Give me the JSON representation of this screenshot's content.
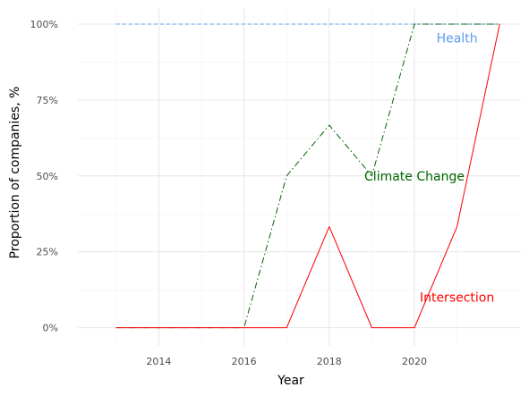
{
  "chart_data": {
    "type": "line",
    "xlabel": "Year",
    "ylabel": "Proportion of companies, %",
    "x": [
      2013,
      2014,
      2015,
      2016,
      2017,
      2018,
      2019,
      2020,
      2021,
      2022
    ],
    "xlim": [
      2012.1,
      2022.5
    ],
    "ylim": [
      -0.06,
      1.05
    ],
    "x_ticks": [
      2014,
      2016,
      2018,
      2020
    ],
    "x_tick_labels": [
      "2014",
      "2016",
      "2018",
      "2020"
    ],
    "y_ticks": [
      0,
      0.25,
      0.5,
      0.75,
      1.0
    ],
    "y_tick_labels": [
      "0%",
      "25%",
      "50%",
      "75%",
      "100%"
    ],
    "grid": true,
    "legend": "none (direct labels)",
    "series": [
      {
        "name": "Health",
        "color": "#5b9bf0",
        "dash": "dashed",
        "values": [
          1,
          1,
          1,
          1,
          1,
          1,
          1,
          1,
          1,
          1
        ],
        "label_x": 2021.0,
        "label_y": 0.955
      },
      {
        "name": "Climate Change",
        "color": "#006400",
        "dash": "dotdash",
        "values": [
          0,
          0,
          0,
          0,
          0.5,
          0.667,
          0.5,
          1,
          1,
          1
        ],
        "label_x": 2020.0,
        "label_y": 0.5
      },
      {
        "name": "Intersection",
        "color": "#ff0000",
        "dash": "solid",
        "values": [
          0,
          0,
          0,
          0,
          0,
          0.333,
          0,
          0,
          0.333,
          1
        ],
        "label_x": 2021.0,
        "label_y": 0.1
      }
    ]
  }
}
